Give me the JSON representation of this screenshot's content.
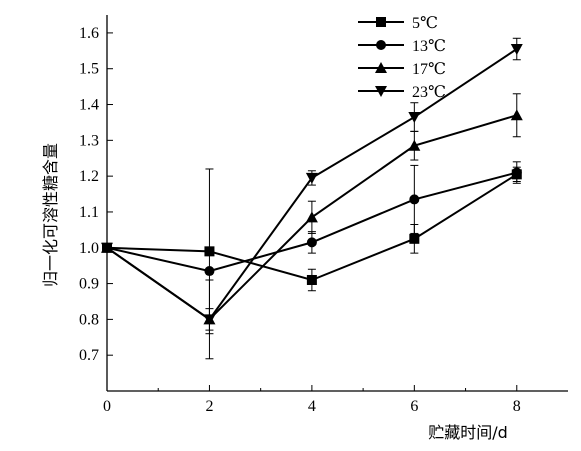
{
  "chart_data": {
    "type": "line",
    "title": "",
    "xlabel": "贮藏时间/d",
    "ylabel": "归一化可溶性糖含量",
    "xlim": [
      0,
      9
    ],
    "ylim": [
      0.6,
      1.65
    ],
    "xticks": [
      0,
      2,
      4,
      6,
      8
    ],
    "yticks": [
      0.7,
      0.8,
      0.9,
      1.0,
      1.1,
      1.2,
      1.3,
      1.4,
      1.5,
      1.6
    ],
    "ytick_labels": [
      "0.7",
      "0.8",
      "0.9",
      "1.0",
      "1.1",
      "1.2",
      "1.3",
      "1.4",
      "1.5",
      "1.6"
    ],
    "legend_position": "top-right",
    "x": [
      0,
      2,
      4,
      6,
      8
    ],
    "series": [
      {
        "name": "5℃",
        "marker": "square",
        "values": [
          1.0,
          0.99,
          0.91,
          1.025,
          1.205
        ],
        "errors": [
          0.0,
          0.23,
          0.03,
          0.04,
          0.02
        ]
      },
      {
        "name": "13℃",
        "marker": "circle",
        "values": [
          1.0,
          0.935,
          1.015,
          1.135,
          1.21
        ],
        "errors": [
          0.0,
          0.0,
          0.03,
          0.095,
          0.03
        ]
      },
      {
        "name": "17℃",
        "marker": "triangle-up",
        "values": [
          1.0,
          0.8,
          1.085,
          1.285,
          1.37
        ],
        "errors": [
          0.0,
          0.11,
          0.045,
          0.04,
          0.06
        ]
      },
      {
        "name": "23℃",
        "marker": "triangle-down",
        "values": [
          1.0,
          0.8,
          1.195,
          1.365,
          1.555
        ],
        "errors": [
          0.0,
          0.03,
          0.02,
          0.04,
          0.03
        ]
      }
    ]
  }
}
